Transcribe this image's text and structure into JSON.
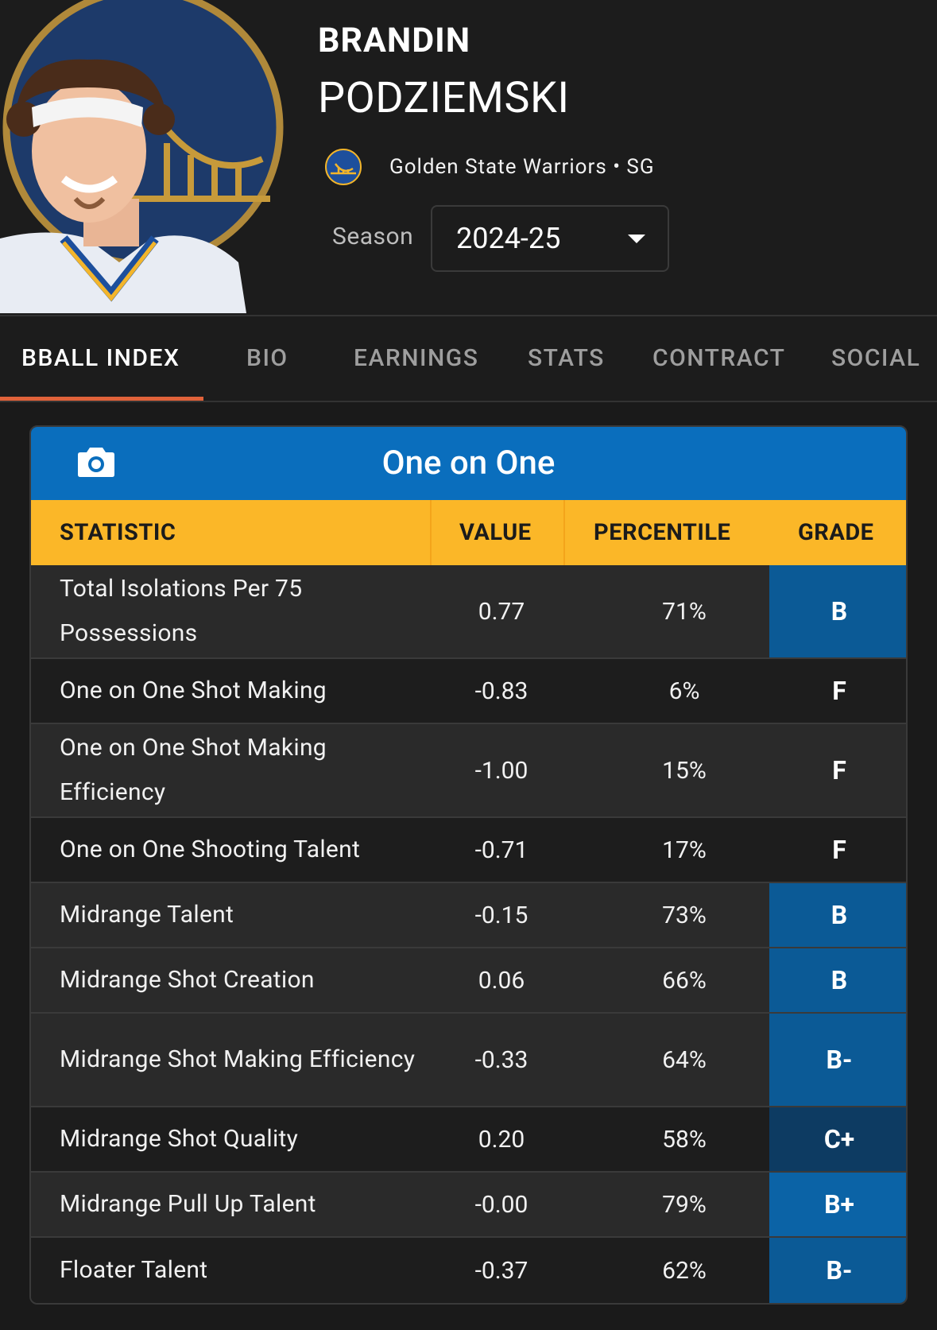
{
  "player": {
    "first_name": "BRANDIN",
    "last_name": "PODZIEMSKI",
    "team_position": "Golden State Warriors • SG"
  },
  "season": {
    "label": "Season",
    "value": "2024-25"
  },
  "tabs": [
    {
      "label": "BBALL INDEX",
      "active": true
    },
    {
      "label": "BIO",
      "active": false
    },
    {
      "label": "EARNINGS",
      "active": false
    },
    {
      "label": "STATS",
      "active": false
    },
    {
      "label": "CONTRACT",
      "active": false
    },
    {
      "label": "SOCIAL",
      "active": false
    }
  ],
  "card": {
    "title": "One on One",
    "columns": {
      "statistic": "STATISTIC",
      "value": "VALUE",
      "percentile": "PERCENTILE",
      "grade": "GRADE"
    },
    "rows": [
      {
        "statistic": "Total Isolations Per 75 Possessions",
        "value": "0.77",
        "percentile": "71%",
        "grade": "B",
        "grade_color": "#0b5a96"
      },
      {
        "statistic": "One on One Shot Making",
        "value": "-0.83",
        "percentile": "6%",
        "grade": "F",
        "grade_color": ""
      },
      {
        "statistic": "One on One Shot Making Efficiency",
        "value": "-1.00",
        "percentile": "15%",
        "grade": "F",
        "grade_color": ""
      },
      {
        "statistic": "One on One Shooting Talent",
        "value": "-0.71",
        "percentile": "17%",
        "grade": "F",
        "grade_color": ""
      },
      {
        "statistic": "Midrange Talent",
        "value": "-0.15",
        "percentile": "73%",
        "grade": "B",
        "grade_color": "#0b5a96"
      },
      {
        "statistic": "Midrange Shot Creation",
        "value": "0.06",
        "percentile": "66%",
        "grade": "B",
        "grade_color": "#0b5a96"
      },
      {
        "statistic": "Midrange Shot Making Efficiency",
        "value": "-0.33",
        "percentile": "64%",
        "grade": "B-",
        "grade_color": "#0b5a96"
      },
      {
        "statistic": "Midrange Shot Quality",
        "value": "0.20",
        "percentile": "58%",
        "grade": "C+",
        "grade_color": "#0d3b62"
      },
      {
        "statistic": "Midrange Pull Up Talent",
        "value": "-0.00",
        "percentile": "79%",
        "grade": "B+",
        "grade_color": "#0b63a6"
      },
      {
        "statistic": "Floater Talent",
        "value": "-0.37",
        "percentile": "62%",
        "grade": "B-",
        "grade_color": "#0b5a96"
      }
    ]
  }
}
